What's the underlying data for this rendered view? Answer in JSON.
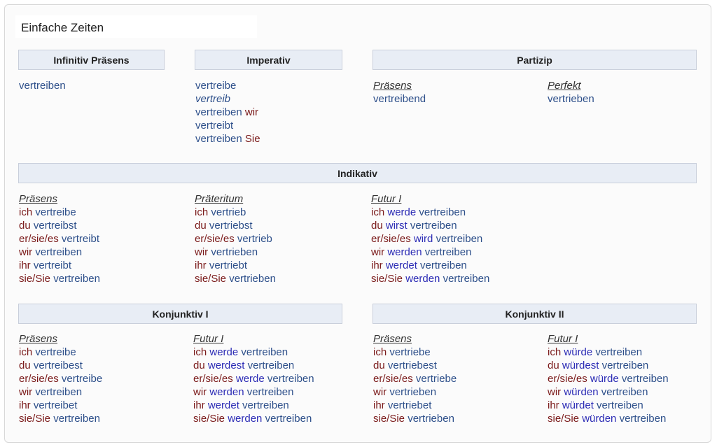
{
  "title": "Einfache Zeiten",
  "headers": {
    "infinitiv": "Infinitiv Präsens",
    "imperativ": "Imperativ",
    "partizip": "Partizip",
    "indikativ": "Indikativ",
    "konj1": "Konjunktiv I",
    "konj2": "Konjunktiv II"
  },
  "infinitiv": {
    "form": "vertreiben"
  },
  "imperativ": {
    "lines": [
      {
        "verb": "vertreibe",
        "pron": ""
      },
      {
        "verb": "vertreib",
        "pron": ""
      },
      {
        "verb": "vertreiben",
        "pron": "wir"
      },
      {
        "verb": "vertreibt",
        "pron": ""
      },
      {
        "verb": "vertreiben",
        "pron": "Sie"
      }
    ]
  },
  "partizip": {
    "praesens_label": "Präsens",
    "praesens": "vertreibend",
    "perfekt_label": "Perfekt",
    "perfekt": "vertrieben"
  },
  "indikativ": {
    "praesens": {
      "label": "Präsens",
      "lines": [
        {
          "pron": "ich",
          "verb": "vertreibe"
        },
        {
          "pron": "du",
          "verb": "vertreibst"
        },
        {
          "pron": "er/sie/es",
          "verb": "vertreibt"
        },
        {
          "pron": "wir",
          "verb": "vertreiben"
        },
        {
          "pron": "ihr",
          "verb": "vertreibt"
        },
        {
          "pron": "sie/Sie",
          "verb": "vertreiben"
        }
      ]
    },
    "praeteritum": {
      "label": "Präteritum",
      "lines": [
        {
          "pron": "ich",
          "verb": "vertrieb"
        },
        {
          "pron": "du",
          "verb": "vertriebst"
        },
        {
          "pron": "er/sie/es",
          "verb": "vertrieb"
        },
        {
          "pron": "wir",
          "verb": "vertrieben"
        },
        {
          "pron": "ihr",
          "verb": "vertriebt"
        },
        {
          "pron": "sie/Sie",
          "verb": "vertrieben"
        }
      ]
    },
    "futur1": {
      "label": "Futur I",
      "lines": [
        {
          "pron": "ich",
          "aux": "werde",
          "verb": "vertreiben"
        },
        {
          "pron": "du",
          "aux": "wirst",
          "verb": "vertreiben"
        },
        {
          "pron": "er/sie/es",
          "aux": "wird",
          "verb": "vertreiben"
        },
        {
          "pron": "wir",
          "aux": "werden",
          "verb": "vertreiben"
        },
        {
          "pron": "ihr",
          "aux": "werdet",
          "verb": "vertreiben"
        },
        {
          "pron": "sie/Sie",
          "aux": "werden",
          "verb": "vertreiben"
        }
      ]
    }
  },
  "konj1": {
    "praesens": {
      "label": "Präsens",
      "lines": [
        {
          "pron": "ich",
          "verb": "vertreibe"
        },
        {
          "pron": "du",
          "verb": "vertreibest"
        },
        {
          "pron": "er/sie/es",
          "verb": "vertreibe"
        },
        {
          "pron": "wir",
          "verb": "vertreiben"
        },
        {
          "pron": "ihr",
          "verb": "vertreibet"
        },
        {
          "pron": "sie/Sie",
          "verb": "vertreiben"
        }
      ]
    },
    "futur1": {
      "label": "Futur I",
      "lines": [
        {
          "pron": "ich",
          "aux": "werde",
          "verb": "vertreiben"
        },
        {
          "pron": "du",
          "aux": "werdest",
          "verb": "vertreiben"
        },
        {
          "pron": "er/sie/es",
          "aux": "werde",
          "verb": "vertreiben"
        },
        {
          "pron": "wir",
          "aux": "werden",
          "verb": "vertreiben"
        },
        {
          "pron": "ihr",
          "aux": "werdet",
          "verb": "vertreiben"
        },
        {
          "pron": "sie/Sie",
          "aux": "werden",
          "verb": "vertreiben"
        }
      ]
    }
  },
  "konj2": {
    "praesens": {
      "label": "Präsens",
      "lines": [
        {
          "pron": "ich",
          "verb": "vertriebe"
        },
        {
          "pron": "du",
          "verb": "vertriebest"
        },
        {
          "pron": "er/sie/es",
          "verb": "vertriebe"
        },
        {
          "pron": "wir",
          "verb": "vertrieben"
        },
        {
          "pron": "ihr",
          "verb": "vertriebet"
        },
        {
          "pron": "sie/Sie",
          "verb": "vertrieben"
        }
      ]
    },
    "futur1": {
      "label": "Futur I",
      "lines": [
        {
          "pron": "ich",
          "aux": "würde",
          "verb": "vertreiben"
        },
        {
          "pron": "du",
          "aux": "würdest",
          "verb": "vertreiben"
        },
        {
          "pron": "er/sie/es",
          "aux": "würde",
          "verb": "vertreiben"
        },
        {
          "pron": "wir",
          "aux": "würden",
          "verb": "vertreiben"
        },
        {
          "pron": "ihr",
          "aux": "würdet",
          "verb": "vertreiben"
        },
        {
          "pron": "sie/Sie",
          "aux": "würden",
          "verb": "vertreiben"
        }
      ]
    }
  }
}
